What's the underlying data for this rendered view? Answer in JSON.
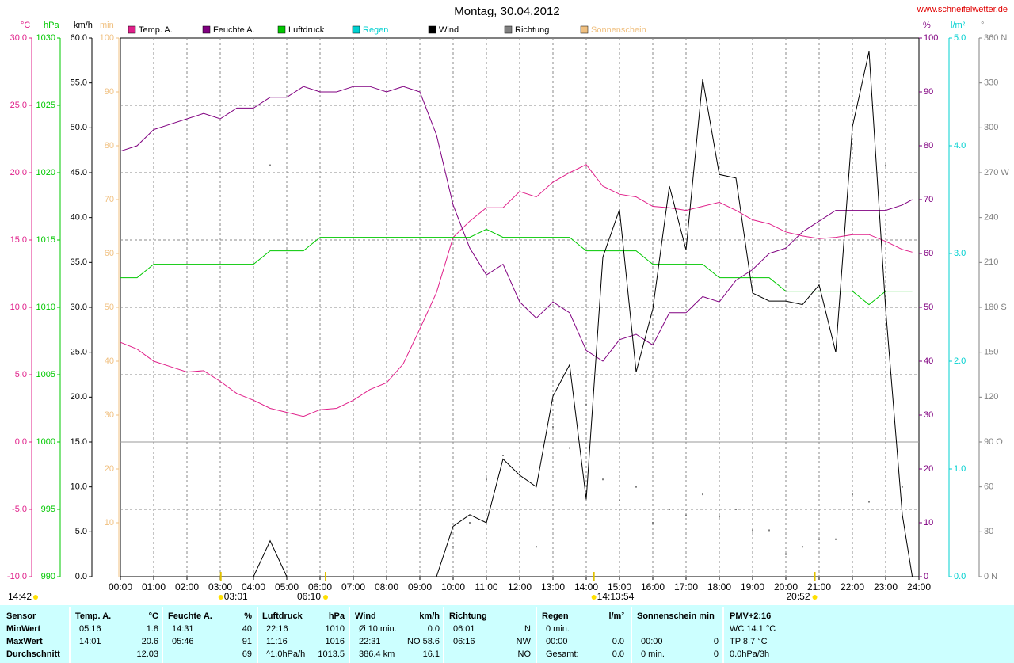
{
  "chart_data": {
    "type": "line",
    "title": "Montag, 30.04.2012",
    "source": "www.schneifelwetter.de",
    "corner_label": "14:42",
    "grid": true,
    "x": [
      0,
      0.5,
      1,
      1.5,
      2,
      2.5,
      3,
      3.5,
      4,
      4.5,
      5,
      5.5,
      6,
      6.5,
      7,
      7.5,
      8,
      8.5,
      9,
      9.5,
      10,
      10.5,
      11,
      11.5,
      12,
      12.5,
      13,
      13.5,
      14,
      14.5,
      15,
      15.5,
      16,
      16.5,
      17,
      17.5,
      18,
      18.5,
      19,
      19.5,
      20,
      20.5,
      21,
      21.5,
      22,
      22.5,
      23,
      23.5,
      23.8
    ],
    "xlim": [
      0,
      24
    ],
    "xticks": [
      {
        "value": 0,
        "label": "00:00"
      },
      {
        "value": 1,
        "label": "01:00"
      },
      {
        "value": 2,
        "label": "02:00"
      },
      {
        "value": 3,
        "label": "03:00"
      },
      {
        "value": 4,
        "label": "04:00"
      },
      {
        "value": 5,
        "label": "05:00"
      },
      {
        "value": 6,
        "label": "06:00"
      },
      {
        "value": 7,
        "label": "07:00"
      },
      {
        "value": 8,
        "label": "08:00"
      },
      {
        "value": 9,
        "label": "09:00"
      },
      {
        "value": 10,
        "label": "10:00"
      },
      {
        "value": 11,
        "label": "11:00"
      },
      {
        "value": 12,
        "label": "12:00"
      },
      {
        "value": 13,
        "label": "13:00"
      },
      {
        "value": 14,
        "label": "14:00"
      },
      {
        "value": 15,
        "label": "15:00"
      },
      {
        "value": 16,
        "label": "16:00"
      },
      {
        "value": 17,
        "label": "17:00"
      },
      {
        "value": 18,
        "label": "18:00"
      },
      {
        "value": 19,
        "label": "19:00"
      },
      {
        "value": 20,
        "label": "20:00"
      },
      {
        "value": 21,
        "label": "21:00"
      },
      {
        "value": 22,
        "label": "22:00"
      },
      {
        "value": 23,
        "label": "23:00"
      },
      {
        "value": 24,
        "label": "24:00"
      }
    ],
    "series": [
      {
        "name": "Temp. A.",
        "color": "#e0208a",
        "axis": {
          "label": "°C",
          "lim": [
            -10,
            30
          ],
          "ticks": [
            {
              "value": -10,
              "label": "-10.0"
            },
            {
              "value": -5,
              "label": "-5.0"
            },
            {
              "value": 0,
              "label": "0.0"
            },
            {
              "value": 5,
              "label": "5.0"
            },
            {
              "value": 10,
              "label": "10.0"
            },
            {
              "value": 15,
              "label": "15.0"
            },
            {
              "value": 20,
              "label": "20.0"
            },
            {
              "value": 25,
              "label": "25.0"
            },
            {
              "value": 30,
              "label": "30.0"
            }
          ]
        },
        "values": [
          7.4,
          6.9,
          6.0,
          5.6,
          5.2,
          5.3,
          4.5,
          3.6,
          3.1,
          2.5,
          2.2,
          1.9,
          2.4,
          2.5,
          3.1,
          3.9,
          4.4,
          5.8,
          8.4,
          11.1,
          15.2,
          16.4,
          17.4,
          17.4,
          18.6,
          18.2,
          19.3,
          20.0,
          20.6,
          19.0,
          18.4,
          18.2,
          17.5,
          17.4,
          17.2,
          17.5,
          17.8,
          17.2,
          16.5,
          16.2,
          15.6,
          15.3,
          15.1,
          15.2,
          15.4,
          15.4,
          14.9,
          14.3,
          14.1
        ]
      },
      {
        "name": "Feuchte A.",
        "color": "#800080",
        "axis": {
          "label": "%",
          "lim": [
            0,
            100
          ],
          "ticks": [
            0,
            10,
            20,
            30,
            40,
            50,
            60,
            70,
            80,
            90,
            100
          ]
        },
        "values": [
          79,
          80,
          83,
          84,
          85,
          86,
          85,
          87,
          87,
          89,
          89,
          91,
          90,
          90,
          91,
          91,
          90,
          91,
          90,
          82,
          69,
          61,
          56,
          58,
          51,
          48,
          51,
          49,
          42,
          40,
          44,
          45,
          43,
          49,
          49,
          52,
          51,
          55,
          57,
          60,
          61,
          64,
          66,
          68,
          68,
          68,
          68,
          69,
          70
        ]
      },
      {
        "name": "Luftdruck",
        "color": "#00c800",
        "axis": {
          "label": "hPa",
          "lim": [
            990,
            1030
          ],
          "ticks": [
            990,
            995,
            1000,
            1005,
            1010,
            1015,
            1020,
            1025,
            1030
          ]
        },
        "values": [
          1012.2,
          1012.2,
          1013.2,
          1013.2,
          1013.2,
          1013.2,
          1013.2,
          1013.2,
          1013.2,
          1014.2,
          1014.2,
          1014.2,
          1015.2,
          1015.2,
          1015.2,
          1015.2,
          1015.2,
          1015.2,
          1015.2,
          1015.2,
          1015.2,
          1015.2,
          1015.8,
          1015.2,
          1015.2,
          1015.2,
          1015.2,
          1015.2,
          1014.2,
          1014.2,
          1014.2,
          1014.2,
          1013.2,
          1013.2,
          1013.2,
          1013.2,
          1012.2,
          1012.2,
          1012.2,
          1012.2,
          1011.2,
          1011.2,
          1011.2,
          1011.2,
          1011.2,
          1010.2,
          1011.2,
          1011.2,
          1011.2
        ]
      },
      {
        "name": "Regen",
        "color": "#00d0d0",
        "axis": {
          "label": "l/m²",
          "lim": [
            0,
            5
          ],
          "ticks": [
            {
              "value": 0,
              "label": "0.0"
            },
            {
              "value": 1,
              "label": "1.0"
            },
            {
              "value": 2,
              "label": "2.0"
            },
            {
              "value": 3,
              "label": "3.0"
            },
            {
              "value": 4,
              "label": "4.0"
            },
            {
              "value": 5,
              "label": "5.0"
            }
          ]
        }
      },
      {
        "name": "Wind",
        "color": "#000000",
        "axis": {
          "label": "km/h",
          "lim": [
            0,
            60
          ],
          "ticks": [
            {
              "value": 0,
              "label": "0.0"
            },
            {
              "value": 5,
              "label": "5.0"
            },
            {
              "value": 10,
              "label": "10.0"
            },
            {
              "value": 15,
              "label": "15.0"
            },
            {
              "value": 20,
              "label": "20.0"
            },
            {
              "value": 25,
              "label": "25.0"
            },
            {
              "value": 30,
              "label": "30.0"
            },
            {
              "value": 35,
              "label": "35.0"
            },
            {
              "value": 40,
              "label": "40.0"
            },
            {
              "value": 45,
              "label": "45.0"
            },
            {
              "value": 50,
              "label": "50.0"
            },
            {
              "value": 55,
              "label": "55.0"
            },
            {
              "value": 60,
              "label": "60.0"
            }
          ]
        },
        "values": [
          0,
          0,
          0,
          0,
          0,
          0,
          0,
          0,
          0,
          4.0,
          0,
          0,
          0,
          0,
          0,
          0,
          0,
          0,
          0,
          0,
          5.6,
          6.9,
          6.0,
          13.1,
          11.3,
          10.0,
          20.1,
          23.6,
          8.6,
          35.6,
          40.9,
          22.8,
          29.8,
          43.5,
          36.4,
          55.4,
          44.8,
          44.4,
          31.6,
          30.7,
          30.7,
          30.3,
          32.5,
          25.0,
          50.1,
          58.5,
          29.8,
          6.9,
          0
        ]
      },
      {
        "name": "Richtung",
        "color": "#808080",
        "mark": "dot",
        "axis": {
          "label": "°",
          "lim": [
            0,
            360
          ],
          "ticks": [
            {
              "value": 0,
              "label": "0 N"
            },
            30,
            60,
            {
              "value": 90,
              "label": "90 O"
            },
            120,
            150,
            {
              "value": 180,
              "label": "180 S"
            },
            210,
            240,
            {
              "value": 270,
              "label": "270 W"
            },
            300,
            330,
            {
              "value": 360,
              "label": "360 N"
            }
          ]
        },
        "values": [
          null,
          null,
          null,
          null,
          null,
          null,
          null,
          null,
          null,
          275,
          null,
          null,
          null,
          null,
          null,
          null,
          null,
          null,
          null,
          null,
          20,
          36,
          65,
          81,
          70,
          20,
          100,
          86,
          115,
          65,
          51,
          60,
          36,
          45,
          41,
          55,
          40,
          45,
          31,
          31,
          15,
          20,
          25,
          25,
          55,
          50,
          275,
          60,
          null
        ]
      },
      {
        "name": "Sonnenschein",
        "color": "#f0c080",
        "axis": {
          "label": "min",
          "lim": [
            0,
            100
          ],
          "ticks": [
            10,
            20,
            30,
            40,
            50,
            60,
            70,
            80,
            90,
            100
          ]
        }
      }
    ],
    "markers": [
      {
        "x": 3.017,
        "label": "03:01"
      },
      {
        "x": 6.167,
        "label": "06:10"
      },
      {
        "x": 14.23,
        "label": "14:13:54"
      },
      {
        "x": 20.87,
        "label": "20:52"
      }
    ]
  },
  "table": {
    "columns": [
      {
        "label": "Sensor",
        "rows": [
          "MinWert",
          "MaxWert",
          "Durchschnitt"
        ]
      },
      {
        "label": "Temp. A.",
        "unit": "°C",
        "rows": [
          [
            "05:16",
            "1.8"
          ],
          [
            "14:01",
            "20.6"
          ],
          [
            null,
            "12.03"
          ]
        ]
      },
      {
        "label": "Feuchte A.",
        "unit": "%",
        "rows": [
          [
            "14:31",
            "40"
          ],
          [
            "05:46",
            "91"
          ],
          [
            null,
            "69"
          ]
        ]
      },
      {
        "label": "Luftdruck",
        "unit": "hPa",
        "rows": [
          [
            "22:16",
            "1010"
          ],
          [
            "11:16",
            "1016"
          ],
          [
            "^1.0hPa/h",
            "1013.5"
          ]
        ]
      },
      {
        "label": "Wind",
        "unit": "km/h",
        "rows": [
          [
            "Ø 10 min.",
            "0.0"
          ],
          [
            "22:31",
            "NO 58.6"
          ],
          [
            "386.4 km",
            "16.1"
          ]
        ]
      },
      {
        "label": "Richtung",
        "rows": [
          [
            "06:01",
            "N"
          ],
          [
            "06:16",
            "NW"
          ],
          [
            null,
            "NO"
          ]
        ]
      },
      {
        "label": "Regen",
        "unit": "l/m²",
        "rows": [
          [
            "0 min.",
            null
          ],
          [
            "00:00",
            "0.0"
          ],
          [
            "Gesamt:",
            "0.0"
          ]
        ]
      },
      {
        "label": "Sonnenschein min",
        "rows": [
          [
            null,
            null
          ],
          [
            "00:00",
            "0"
          ],
          [
            "0 min.",
            "0"
          ]
        ]
      },
      {
        "label": "PMV+2:16",
        "rows": [
          [
            "WC 14.1 °C"
          ],
          [
            "TP 8.7 °C"
          ],
          [
            "0.0hPa/3h"
          ]
        ]
      }
    ]
  }
}
